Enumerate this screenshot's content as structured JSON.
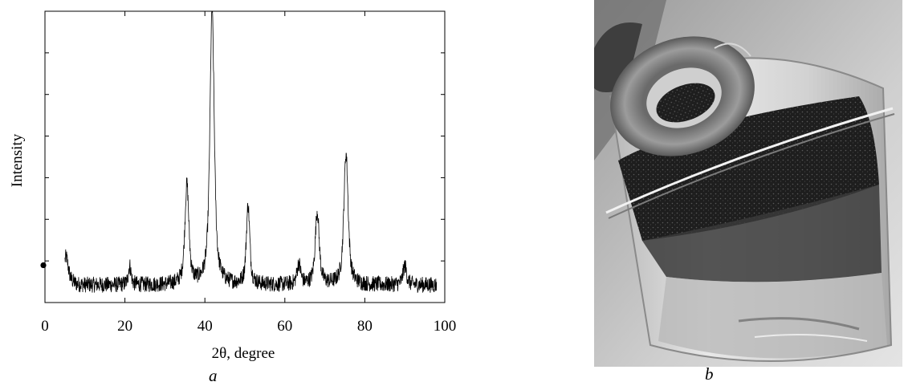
{
  "figure": {
    "caption_a": "a",
    "caption_b": "b"
  },
  "chart_data": {
    "type": "line",
    "title": "",
    "xlabel": "2θ, degree",
    "ylabel": "Intensity",
    "xlim": [
      0,
      100
    ],
    "ylim": [
      0,
      100
    ],
    "x_ticks": [
      0,
      20,
      40,
      60,
      80,
      100
    ],
    "y_ticks": [],
    "grid": false,
    "legend": "none",
    "series": [
      {
        "color": "#000000",
        "noisy": true,
        "x_range": [
          5,
          98
        ],
        "baseline": 6,
        "peaks": [
          {
            "x": 5.3,
            "height": 8,
            "width": 0.7
          },
          {
            "x": 21.2,
            "height": 6.5,
            "width": 0.45
          },
          {
            "x": 35.5,
            "height": 34,
            "width": 0.65
          },
          {
            "x": 41.8,
            "height": 94,
            "width": 0.7
          },
          {
            "x": 50.8,
            "height": 27,
            "width": 0.55
          },
          {
            "x": 63.5,
            "height": 7,
            "width": 0.6
          },
          {
            "x": 68.1,
            "height": 25,
            "width": 0.65
          },
          {
            "x": 75.3,
            "height": 45,
            "width": 0.7
          },
          {
            "x": 90.0,
            "height": 6.5,
            "width": 0.6
          }
        ]
      }
    ],
    "marker_point": {
      "x": 0,
      "y": 12.8
    }
  }
}
